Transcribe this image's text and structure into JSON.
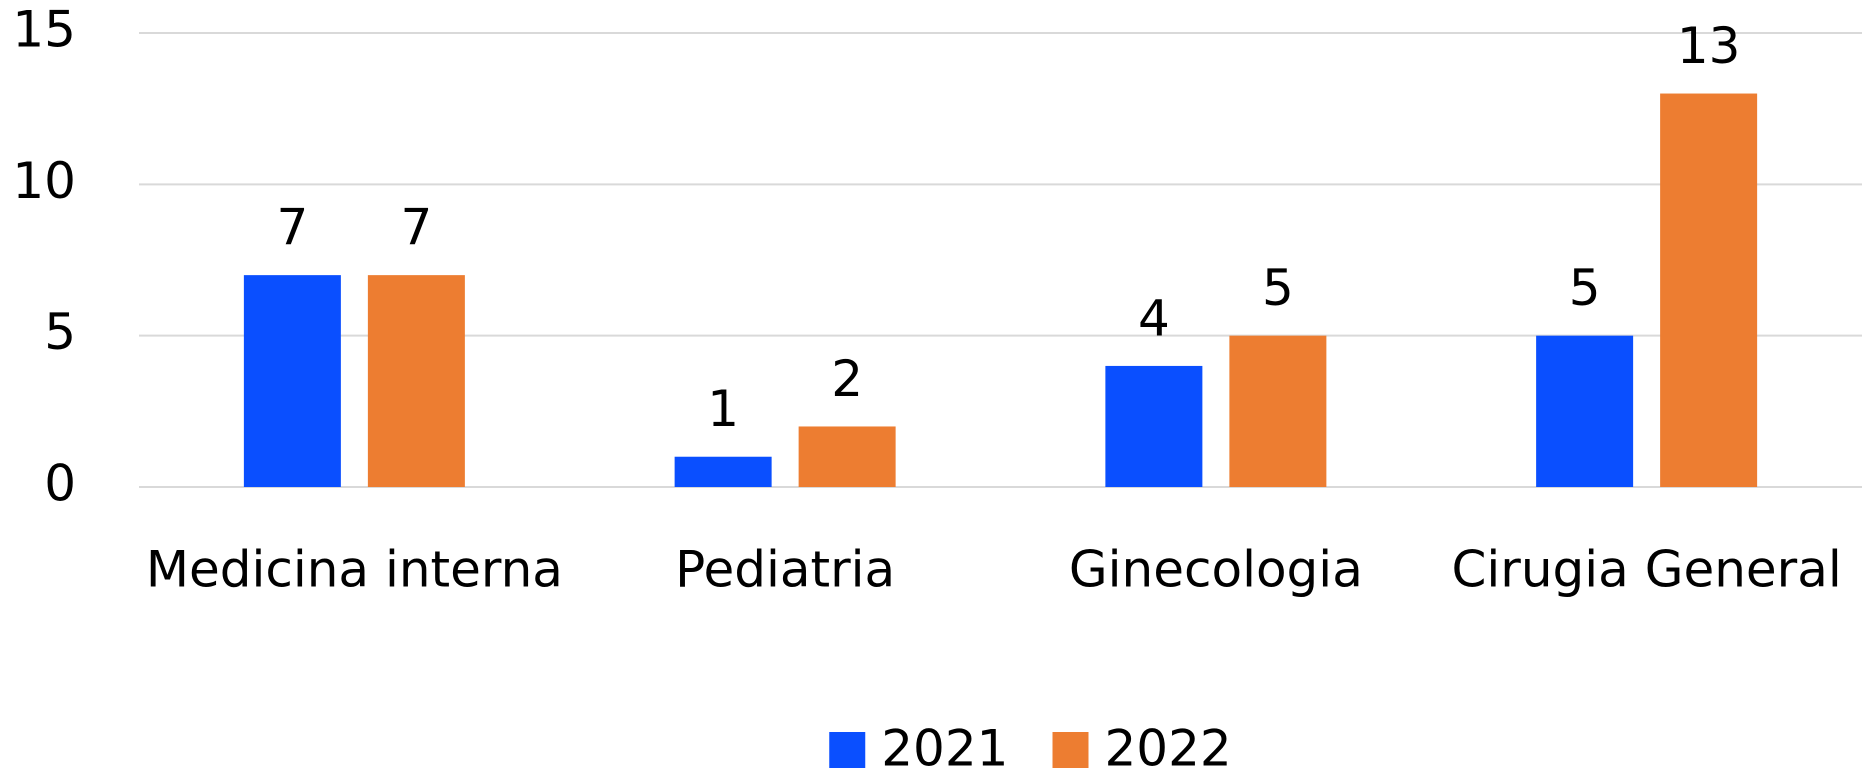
{
  "chart_data": {
    "type": "bar",
    "categories": [
      "Medicina interna",
      "Pediatria",
      "Ginecologia",
      "Cirugia General"
    ],
    "series": [
      {
        "name": "2021",
        "color": "#0a4fff",
        "values": [
          7,
          1,
          4,
          5
        ]
      },
      {
        "name": "2022",
        "color": "#ed7d31",
        "values": [
          7,
          2,
          5,
          13
        ]
      }
    ],
    "ylim": [
      0,
      15
    ],
    "yticks": [
      0,
      5,
      10,
      15
    ],
    "grid": true,
    "legend": "bottom"
  }
}
